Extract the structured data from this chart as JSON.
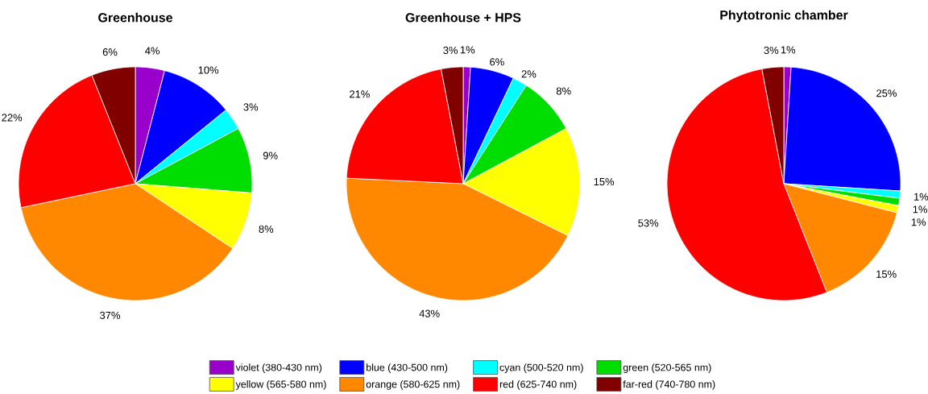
{
  "chart_data": [
    {
      "type": "pie",
      "title": "Greenhouse",
      "categories": [
        null,
        null,
        null,
        null,
        null,
        null,
        null,
        null
      ],
      "values": [
        4,
        10,
        3,
        9,
        8,
        37,
        22,
        6
      ],
      "value_labels": [
        "4%",
        "10%",
        "3%",
        "9%",
        "8%",
        "37%",
        "22%",
        "6%"
      ],
      "colors": [
        "#9900cc",
        "#0000ff",
        "#00ffff",
        "#00dd00",
        "#ffff00",
        "#ff8800",
        "#ff0000",
        "#800000"
      ]
    },
    {
      "type": "pie",
      "title": "Greenhouse + HPS",
      "categories": [
        "violet (380-430 nm)",
        "blue (430-500 nm)",
        "cyan (500-520 nm)",
        "green (520-565 nm)",
        "yellow (565-580 nm)",
        "orange (580-625 nm)",
        "red (625-740 nm)",
        "far-red (740-780 nm)"
      ],
      "values": [
        1,
        6,
        2,
        8,
        15,
        43,
        21,
        3
      ],
      "value_labels": [
        "1%",
        "6%",
        "2%",
        "8%",
        "15%",
        "43%",
        "21%",
        "3%"
      ],
      "colors": [
        "#9900cc",
        "#0000ff",
        "#00ffff",
        "#00dd00",
        "#ffff00",
        "#ff8800",
        "#ff0000",
        "#800000"
      ],
      "legend": "bottom"
    },
    {
      "type": "pie",
      "title": "Phytotronic chamber",
      "categories": [
        null,
        null,
        null,
        null,
        null,
        null,
        null,
        null
      ],
      "values": [
        1,
        25,
        1,
        1,
        1,
        15,
        53,
        3
      ],
      "value_labels": [
        "1%",
        "25%",
        "1%",
        "1%",
        "1%",
        "15%",
        "53%",
        "3%"
      ],
      "colors": [
        "#9900cc",
        "#0000ff",
        "#00ffff",
        "#00dd00",
        "#ffff00",
        "#ff8800",
        "#ff0000",
        "#800000"
      ]
    }
  ]
}
